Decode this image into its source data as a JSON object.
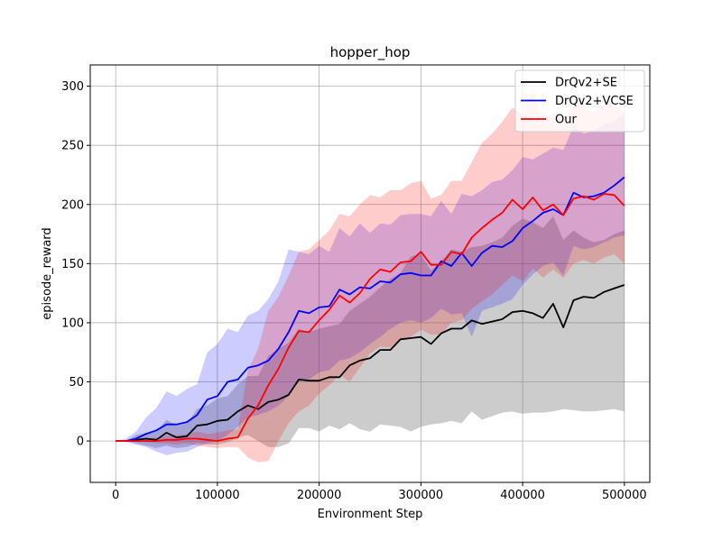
{
  "chart_data": {
    "type": "line",
    "title": "hopper_hop",
    "xlabel": "Environment Step",
    "ylabel": "episode_reward",
    "xlim": [
      -25000,
      525000
    ],
    "ylim": [
      -35,
      318
    ],
    "grid": true,
    "legend_position": "top-right",
    "x_ticks": [
      0,
      100000,
      200000,
      300000,
      400000,
      500000
    ],
    "x_tick_labels": [
      "0",
      "100000",
      "200000",
      "300000",
      "400000",
      "500000"
    ],
    "y_ticks": [
      0,
      50,
      100,
      150,
      200,
      250,
      300
    ],
    "y_tick_labels": [
      "0",
      "50",
      "100",
      "150",
      "200",
      "250",
      "300"
    ],
    "x": [
      0,
      10000,
      20000,
      30000,
      40000,
      50000,
      60000,
      70000,
      80000,
      90000,
      100000,
      110000,
      120000,
      130000,
      140000,
      150000,
      160000,
      170000,
      180000,
      190000,
      200000,
      210000,
      220000,
      230000,
      240000,
      250000,
      260000,
      270000,
      280000,
      290000,
      300000,
      310000,
      320000,
      330000,
      340000,
      350000,
      360000,
      370000,
      380000,
      390000,
      400000,
      410000,
      420000,
      430000,
      440000,
      450000,
      460000,
      470000,
      480000,
      490000,
      500000
    ],
    "series": [
      {
        "name": "DrQv2+SE",
        "color": "#000000",
        "band_color": "#808080",
        "band_opacity": 0.4,
        "mean": [
          0,
          0,
          1,
          2,
          1,
          7,
          3,
          4,
          13,
          14,
          17,
          18,
          25,
          30,
          27,
          33,
          35,
          39,
          52,
          51,
          51,
          54,
          54,
          64,
          68,
          70,
          77,
          77,
          86,
          87,
          88,
          82,
          91,
          95,
          95,
          102,
          99,
          101,
          103,
          109,
          110,
          108,
          104,
          116,
          96,
          119,
          122,
          121,
          126,
          129,
          132
        ],
        "lower": [
          0,
          0,
          -2,
          -4,
          -6,
          -4,
          -6,
          -5,
          -2,
          -3,
          -3,
          -1,
          3,
          5,
          0,
          -5,
          -5,
          -2,
          11,
          11,
          8,
          13,
          10,
          15,
          10,
          8,
          14,
          13,
          12,
          8,
          12,
          14,
          15,
          17,
          15,
          25,
          18,
          21,
          24,
          25,
          23,
          24,
          24,
          25,
          27,
          26,
          25,
          25,
          26,
          27,
          25
        ],
        "upper": [
          0,
          0,
          5,
          7,
          8,
          18,
          13,
          15,
          27,
          30,
          36,
          38,
          48,
          55,
          55,
          72,
          78,
          83,
          95,
          92,
          95,
          97,
          99,
          110,
          116,
          122,
          130,
          137,
          142,
          156,
          158,
          144,
          152,
          162,
          160,
          164,
          165,
          168,
          172,
          182,
          188,
          185,
          180,
          190,
          170,
          178,
          172,
          168,
          170,
          175,
          178
        ]
      },
      {
        "name": "DrQv2+VCSE",
        "color": "#0000ff",
        "band_color": "#0000ff",
        "band_opacity": 0.2,
        "mean": [
          0,
          0,
          2,
          6,
          9,
          14,
          14,
          16,
          22,
          35,
          38,
          50,
          52,
          62,
          64,
          68,
          78,
          92,
          110,
          108,
          113,
          114,
          128,
          124,
          130,
          129,
          135,
          134,
          141,
          142,
          140,
          140,
          152,
          148,
          159,
          148,
          159,
          165,
          164,
          169,
          180,
          186,
          193,
          196,
          191,
          210,
          206,
          207,
          210,
          216,
          223
        ],
        "lower": [
          0,
          -1,
          -3,
          -5,
          -9,
          -12,
          -10,
          -9,
          -5,
          -2,
          0,
          5,
          12,
          20,
          22,
          25,
          30,
          38,
          50,
          52,
          58,
          60,
          68,
          70,
          75,
          82,
          88,
          95,
          100,
          102,
          100,
          104,
          112,
          107,
          108,
          88,
          110,
          113,
          116,
          120,
          132,
          141,
          148,
          151,
          140,
          165,
          162,
          164,
          168,
          172,
          174
        ],
        "upper": [
          0,
          2,
          8,
          20,
          28,
          42,
          38,
          44,
          48,
          75,
          82,
          95,
          92,
          106,
          110,
          120,
          135,
          162,
          160,
          158,
          165,
          160,
          180,
          173,
          184,
          176,
          184,
          183,
          191,
          192,
          192,
          190,
          203,
          192,
          209,
          207,
          212,
          219,
          221,
          229,
          240,
          238,
          243,
          248,
          246,
          266,
          260,
          262,
          268,
          270,
          276
        ]
      },
      {
        "name": "Our",
        "color": "#ff0000",
        "band_color": "#ff0000",
        "band_opacity": 0.2,
        "mean": [
          0,
          0,
          0,
          0,
          0,
          1,
          1,
          2,
          2,
          1,
          0,
          2,
          3,
          19,
          30,
          47,
          61,
          79,
          93,
          92,
          102,
          111,
          123,
          117,
          125,
          137,
          145,
          143,
          151,
          152,
          160,
          149,
          149,
          160,
          158,
          172,
          180,
          187,
          193,
          204,
          196,
          206,
          195,
          200,
          191,
          205,
          207,
          204,
          209,
          208,
          199
        ],
        "lower": [
          0,
          0,
          0,
          -1,
          -2,
          -2,
          -3,
          -2,
          -4,
          -5,
          -6,
          -5,
          -5,
          -14,
          -18,
          -17,
          0,
          15,
          25,
          30,
          40,
          47,
          56,
          50,
          62,
          74,
          80,
          79,
          86,
          88,
          94,
          90,
          90,
          100,
          102,
          112,
          118,
          124,
          132,
          140,
          135,
          146,
          138,
          145,
          138,
          150,
          153,
          150,
          155,
          158,
          150
        ],
        "upper": [
          0,
          0,
          1,
          2,
          3,
          4,
          5,
          6,
          8,
          6,
          7,
          9,
          10,
          60,
          78,
          110,
          122,
          140,
          160,
          162,
          170,
          178,
          192,
          190,
          200,
          208,
          206,
          212,
          212,
          218,
          220,
          205,
          208,
          220,
          220,
          236,
          252,
          260,
          270,
          282,
          276,
          296,
          270,
          278,
          270,
          286,
          282,
          278,
          284,
          286,
          278
        ]
      }
    ]
  }
}
